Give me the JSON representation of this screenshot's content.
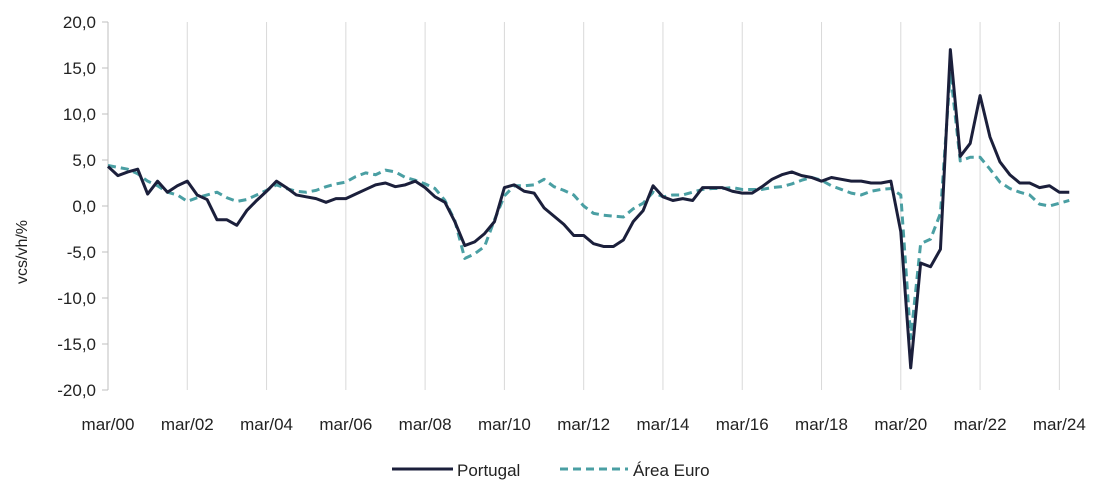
{
  "chart_data": {
    "type": "line",
    "ylabel": "vcs/vh/%",
    "xlabel": "",
    "ylim": [
      -20,
      20
    ],
    "y_ticks": [
      "20,0",
      "15,0",
      "10,0",
      "5,0",
      "0,0",
      "-5,0",
      "-10,0",
      "-15,0",
      "-20,0"
    ],
    "x_tick_labels": [
      "mar/00",
      "mar/02",
      "mar/04",
      "mar/06",
      "mar/08",
      "mar/10",
      "mar/12",
      "mar/14",
      "mar/16",
      "mar/18",
      "mar/20",
      "mar/22",
      "mar/24"
    ],
    "grid": "vertical",
    "legend_position": "bottom",
    "x_start": "2000-Q1",
    "frequency": "quarterly",
    "series": [
      {
        "name": "Portugal",
        "color": "#1b1f3b",
        "dash": "solid",
        "values": [
          4.3,
          3.3,
          3.7,
          4.0,
          1.3,
          2.7,
          1.5,
          2.2,
          2.7,
          1.2,
          0.7,
          -1.5,
          -1.5,
          -2.1,
          -0.5,
          0.6,
          1.6,
          2.7,
          2.0,
          1.2,
          1.0,
          0.8,
          0.4,
          0.8,
          0.8,
          1.3,
          1.8,
          2.3,
          2.5,
          2.1,
          2.3,
          2.7,
          2.0,
          1.0,
          0.4,
          -1.7,
          -4.3,
          -3.9,
          -3.0,
          -1.7,
          2.0,
          2.3,
          1.6,
          1.4,
          -0.2,
          -1.1,
          -2.0,
          -3.2,
          -3.2,
          -4.1,
          -4.4,
          -4.4,
          -3.7,
          -1.7,
          -0.5,
          2.2,
          1.0,
          0.6,
          0.8,
          0.6,
          2.0,
          2.0,
          2.0,
          1.6,
          1.4,
          1.4,
          2.1,
          2.9,
          3.4,
          3.7,
          3.3,
          3.1,
          2.7,
          3.1,
          2.9,
          2.7,
          2.7,
          2.5,
          2.5,
          2.7,
          -2.8,
          -17.6,
          -6.2,
          -6.6,
          -4.7,
          17.0,
          5.4,
          6.8,
          12.0,
          7.5,
          4.8,
          3.4,
          2.5,
          2.5,
          2.0,
          2.2,
          1.5,
          1.5
        ]
      },
      {
        "name": "Área Euro",
        "color": "#4a9fa3",
        "dash": "dashed",
        "values": [
          4.4,
          4.2,
          4.0,
          3.5,
          2.7,
          2.2,
          1.5,
          1.2,
          0.5,
          0.9,
          1.2,
          1.5,
          0.9,
          0.5,
          0.7,
          1.2,
          1.7,
          2.3,
          1.9,
          1.6,
          1.5,
          1.7,
          2.1,
          2.4,
          2.6,
          3.2,
          3.6,
          3.4,
          3.9,
          3.7,
          3.1,
          2.8,
          2.4,
          1.9,
          0.6,
          -1.6,
          -5.7,
          -5.2,
          -4.4,
          -1.5,
          1.1,
          2.2,
          2.2,
          2.3,
          2.9,
          2.1,
          1.7,
          1.2,
          0.0,
          -0.8,
          -1.0,
          -1.1,
          -1.2,
          -0.3,
          0.3,
          1.5,
          1.0,
          1.2,
          1.2,
          1.5,
          1.8,
          1.9,
          1.9,
          2.0,
          1.8,
          1.8,
          1.8,
          2.0,
          2.1,
          2.4,
          2.8,
          3.1,
          2.8,
          2.2,
          1.8,
          1.4,
          1.2,
          1.6,
          1.8,
          1.9,
          1.2,
          -14.4,
          -4.1,
          -3.6,
          -0.8,
          14.6,
          4.9,
          5.3,
          5.3,
          4.0,
          2.6,
          1.9,
          1.5,
          1.2,
          0.2,
          0.0,
          0.3,
          0.6
        ]
      }
    ]
  }
}
